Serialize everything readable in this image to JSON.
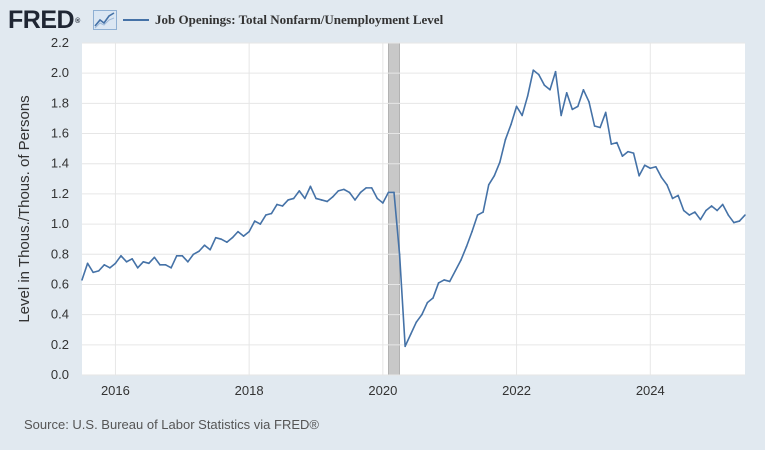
{
  "header": {
    "logo_text": "FRED",
    "logo_mark": "®",
    "legend_label": "Job Openings: Total Nonfarm/Unemployment Level"
  },
  "source_text": "Source: U.S. Bureau of Labor Statistics via FRED®",
  "colors": {
    "background": "#e1e9f0",
    "plot_background": "#ffffff",
    "line": "#4572a7",
    "grid": "#e6e6e6",
    "recession": "#c8c8c8"
  },
  "icons": {
    "graph": "graph-icon"
  },
  "chart_data": {
    "type": "line",
    "title": "",
    "ylabel": "Level in Thous./Thous. of Persons",
    "xlabel": "",
    "xlim": [
      "2015-07",
      "2025-06"
    ],
    "ylim": [
      0.0,
      2.2
    ],
    "yticks": [
      0.0,
      0.2,
      0.4,
      0.6,
      0.8,
      1.0,
      1.2,
      1.4,
      1.6,
      1.8,
      2.0,
      2.2
    ],
    "ytick_labels": [
      "0.0",
      "0.2",
      "0.4",
      "0.6",
      "0.8",
      "1.0",
      "1.2",
      "1.4",
      "1.6",
      "1.8",
      "2.0",
      "2.2"
    ],
    "xticks": [
      "2016-01",
      "2018-01",
      "2020-01",
      "2022-01",
      "2024-01"
    ],
    "xtick_labels": [
      "2016",
      "2018",
      "2020",
      "2022",
      "2024"
    ],
    "grid": true,
    "recession_shading": {
      "start": "2020-02",
      "end": "2020-04"
    },
    "series": [
      {
        "name": "Job Openings: Total Nonfarm/Unemployment Level",
        "x": [
          "2015-07",
          "2015-08",
          "2015-09",
          "2015-10",
          "2015-11",
          "2015-12",
          "2016-01",
          "2016-02",
          "2016-03",
          "2016-04",
          "2016-05",
          "2016-06",
          "2016-07",
          "2016-08",
          "2016-09",
          "2016-10",
          "2016-11",
          "2016-12",
          "2017-01",
          "2017-02",
          "2017-03",
          "2017-04",
          "2017-05",
          "2017-06",
          "2017-07",
          "2017-08",
          "2017-09",
          "2017-10",
          "2017-11",
          "2017-12",
          "2018-01",
          "2018-02",
          "2018-03",
          "2018-04",
          "2018-05",
          "2018-06",
          "2018-07",
          "2018-08",
          "2018-09",
          "2018-10",
          "2018-11",
          "2018-12",
          "2019-01",
          "2019-02",
          "2019-03",
          "2019-04",
          "2019-05",
          "2019-06",
          "2019-07",
          "2019-08",
          "2019-09",
          "2019-10",
          "2019-11",
          "2019-12",
          "2020-01",
          "2020-02",
          "2020-03",
          "2020-04",
          "2020-05",
          "2020-06",
          "2020-07",
          "2020-08",
          "2020-09",
          "2020-10",
          "2020-11",
          "2020-12",
          "2021-01",
          "2021-02",
          "2021-03",
          "2021-04",
          "2021-05",
          "2021-06",
          "2021-07",
          "2021-08",
          "2021-09",
          "2021-10",
          "2021-11",
          "2021-12",
          "2022-01",
          "2022-02",
          "2022-03",
          "2022-04",
          "2022-05",
          "2022-06",
          "2022-07",
          "2022-08",
          "2022-09",
          "2022-10",
          "2022-11",
          "2022-12",
          "2023-01",
          "2023-02",
          "2023-03",
          "2023-04",
          "2023-05",
          "2023-06",
          "2023-07",
          "2023-08",
          "2023-09",
          "2023-10",
          "2023-11",
          "2023-12",
          "2024-01",
          "2024-02",
          "2024-03",
          "2024-04",
          "2024-05",
          "2024-06",
          "2024-07",
          "2024-08",
          "2024-09",
          "2024-10",
          "2024-11",
          "2024-12",
          "2025-01",
          "2025-02",
          "2025-03",
          "2025-04",
          "2025-05",
          "2025-06"
        ],
        "values": [
          0.63,
          0.74,
          0.68,
          0.69,
          0.73,
          0.71,
          0.74,
          0.79,
          0.75,
          0.77,
          0.71,
          0.75,
          0.74,
          0.78,
          0.73,
          0.73,
          0.71,
          0.79,
          0.79,
          0.75,
          0.8,
          0.82,
          0.86,
          0.83,
          0.91,
          0.9,
          0.88,
          0.91,
          0.95,
          0.92,
          0.95,
          1.02,
          1.0,
          1.06,
          1.07,
          1.13,
          1.12,
          1.16,
          1.17,
          1.22,
          1.17,
          1.25,
          1.17,
          1.16,
          1.15,
          1.18,
          1.22,
          1.23,
          1.21,
          1.16,
          1.21,
          1.24,
          1.24,
          1.17,
          1.14,
          1.21,
          1.21,
          0.8,
          0.19,
          0.27,
          0.35,
          0.4,
          0.48,
          0.51,
          0.61,
          0.63,
          0.62,
          0.69,
          0.76,
          0.85,
          0.95,
          1.06,
          1.08,
          1.26,
          1.32,
          1.41,
          1.56,
          1.66,
          1.78,
          1.72,
          1.85,
          2.02,
          1.99,
          1.92,
          1.89,
          2.01,
          1.72,
          1.87,
          1.76,
          1.78,
          1.89,
          1.81,
          1.65,
          1.64,
          1.74,
          1.53,
          1.54,
          1.45,
          1.48,
          1.47,
          1.32,
          1.39,
          1.37,
          1.38,
          1.31,
          1.26,
          1.17,
          1.19,
          1.09,
          1.06,
          1.08,
          1.03,
          1.09,
          1.12,
          1.09,
          1.13,
          1.06,
          1.01,
          1.02,
          1.06
        ]
      }
    ]
  }
}
